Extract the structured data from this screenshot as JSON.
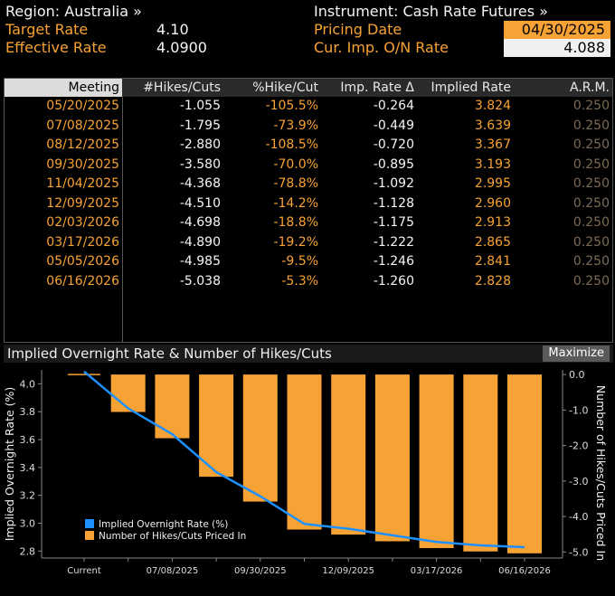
{
  "header": {
    "region_label": "Region: Australia »",
    "target_rate_label": "Target Rate",
    "target_rate_value": "4.10",
    "effective_rate_label": "Effective Rate",
    "effective_rate_value": "4.0900",
    "instrument_label": "Instrument: Cash Rate Futures »",
    "pricing_date_label": "Pricing Date",
    "pricing_date_value": "04/30/2025",
    "cur_imp_label": "Cur. Imp. O/N Rate",
    "cur_imp_value": "4.088"
  },
  "table": {
    "columns": [
      "Meeting",
      "#Hikes/Cuts",
      "%Hike/Cut",
      "Imp. Rate Δ",
      "Implied Rate",
      "A.R.M."
    ],
    "rows": [
      [
        "05/20/2025",
        "-1.055",
        "-105.5%",
        "-0.264",
        "3.824",
        "0.250"
      ],
      [
        "07/08/2025",
        "-1.795",
        "-73.9%",
        "-0.449",
        "3.639",
        "0.250"
      ],
      [
        "08/12/2025",
        "-2.880",
        "-108.5%",
        "-0.720",
        "3.367",
        "0.250"
      ],
      [
        "09/30/2025",
        "-3.580",
        "-70.0%",
        "-0.895",
        "3.193",
        "0.250"
      ],
      [
        "11/04/2025",
        "-4.368",
        "-78.8%",
        "-1.092",
        "2.995",
        "0.250"
      ],
      [
        "12/09/2025",
        "-4.510",
        "-14.2%",
        "-1.128",
        "2.960",
        "0.250"
      ],
      [
        "02/03/2026",
        "-4.698",
        "-18.8%",
        "-1.175",
        "2.913",
        "0.250"
      ],
      [
        "03/17/2026",
        "-4.890",
        "-19.2%",
        "-1.222",
        "2.865",
        "0.250"
      ],
      [
        "05/05/2026",
        "-4.985",
        "-9.5%",
        "-1.246",
        "2.841",
        "0.250"
      ],
      [
        "06/16/2026",
        "-5.038",
        "-5.3%",
        "-1.260",
        "2.828",
        "0.250"
      ]
    ]
  },
  "chart_panel": {
    "title": "Implied Overnight Rate & Number of Hikes/Cuts",
    "maximize_label": "Maximize"
  },
  "chart_data": {
    "type": "bar",
    "categories": [
      "Current",
      "05/20/2025",
      "07/08/2025",
      "08/12/2025",
      "09/30/2025",
      "11/04/2025",
      "12/09/2025",
      "02/03/2026",
      "03/17/2026",
      "05/05/2026",
      "06/16/2026"
    ],
    "x_tick_labels": [
      "Current",
      "",
      "07/08/2025",
      "",
      "09/30/2025",
      "",
      "12/09/2025",
      "",
      "03/17/2026",
      "",
      "06/16/2026"
    ],
    "series": [
      {
        "name": "Implied Overnight Rate (%)",
        "type": "line",
        "axis": "left",
        "color": "#1e90ff",
        "values": [
          4.088,
          3.824,
          3.639,
          3.367,
          3.193,
          2.995,
          2.96,
          2.913,
          2.865,
          2.841,
          2.828
        ]
      },
      {
        "name": "Number of Hikes/Cuts Priced In",
        "type": "bar",
        "axis": "right",
        "color": "#f7a234",
        "values": [
          0,
          -1.055,
          -1.795,
          -2.88,
          -3.58,
          -4.368,
          -4.51,
          -4.698,
          -4.89,
          -4.985,
          -5.038
        ]
      }
    ],
    "ylabel": "Implied Overnight Rate (%)",
    "y2label": "Number of Hikes/Cuts Priced In",
    "ylim": [
      2.75,
      4.1
    ],
    "y2lim": [
      -5.17,
      0.13
    ],
    "yticks": [
      "4.0",
      "3.8",
      "3.6",
      "3.4",
      "3.2",
      "3.0",
      "2.8"
    ],
    "y2ticks": [
      "0.0",
      "-1.0",
      "-2.0",
      "-3.0",
      "-4.0",
      "-5.0"
    ],
    "legend_position": "bottom-left",
    "grid": false
  }
}
